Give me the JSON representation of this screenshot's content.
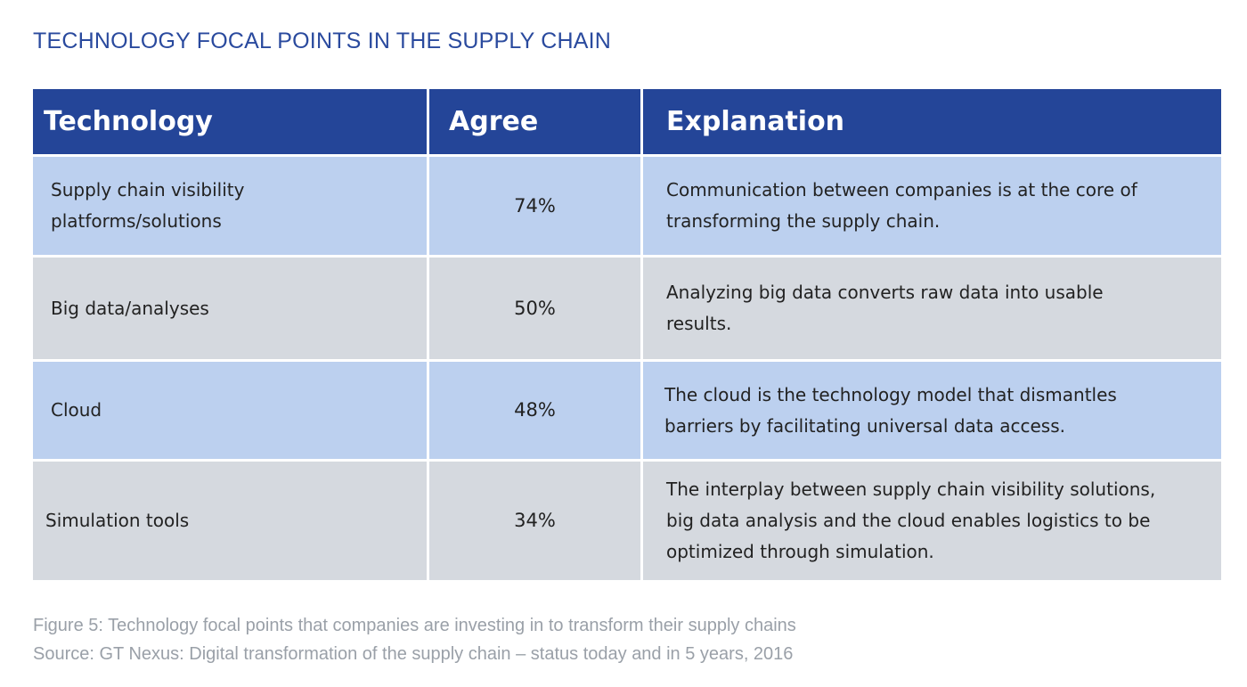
{
  "title": "TECHNOLOGY FOCAL POINTS IN THE SUPPLY CHAIN",
  "table": {
    "headers": [
      "Technology",
      "Agree",
      "Explanation"
    ],
    "rows": [
      {
        "technology": "Supply chain visibility platforms/solutions",
        "agree": "74%",
        "explanation": "Communication between companies is at the core of transforming the supply chain."
      },
      {
        "technology": "Big data/analyses",
        "agree": "50%",
        "explanation": "Analyzing big data converts raw data into usable results."
      },
      {
        "technology": "Cloud",
        "agree": "48%",
        "explanation": "The cloud is the technology model that dismantles barriers by facilitating universal data access."
      },
      {
        "technology": "Simulation tools",
        "agree": "34%",
        "explanation": "The interplay between supply chain visibility solutions, big data analysis and the cloud enables logistics to be optimized through simulation."
      }
    ]
  },
  "caption": {
    "figure": "Figure 5: Technology focal points that companies are investing in to transform their supply chains",
    "source": "Source: GT Nexus: Digital transformation of the supply chain – status today and in 5 years, 2016"
  },
  "colors": {
    "title": "#2a4a9e",
    "header_bg": "#244598",
    "row_blue": "#bcd0ef",
    "row_gray": "#d5d9df",
    "caption": "#9aa0a8"
  }
}
